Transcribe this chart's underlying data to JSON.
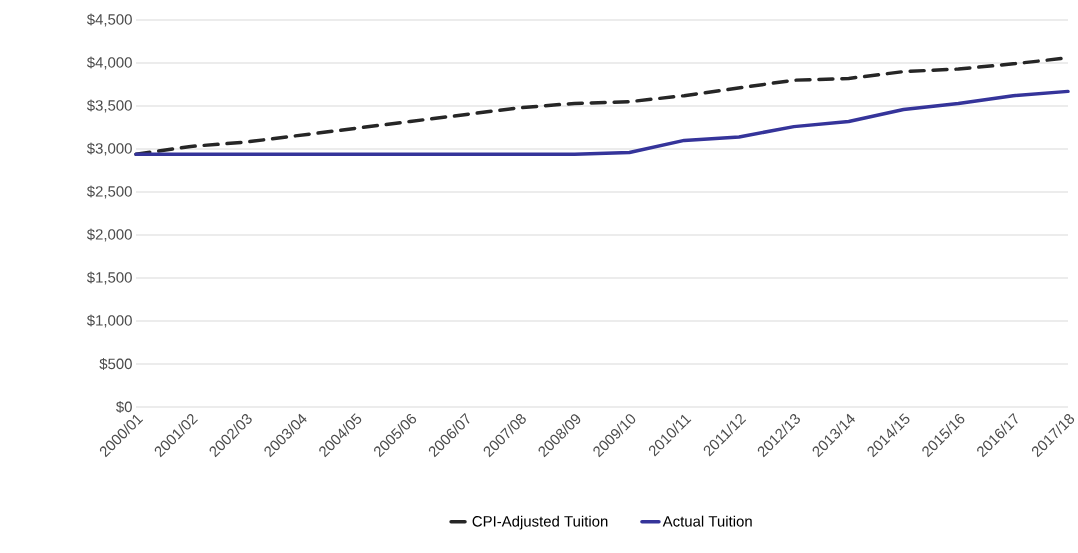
{
  "chart_data": {
    "type": "line",
    "categories": [
      "2000/01",
      "2001/02",
      "2002/03",
      "2003/04",
      "2004/05",
      "2005/06",
      "2006/07",
      "2007/08",
      "2008/09",
      "2009/10",
      "2010/11",
      "2011/12",
      "2012/13",
      "2013/14",
      "2014/15",
      "2015/16",
      "2016/17",
      "2017/18"
    ],
    "series": [
      {
        "name": "CPI-Adjusted Tuition",
        "color": "#262626",
        "line_style": "dashed",
        "values": [
          2940,
          3030,
          3080,
          3160,
          3240,
          3320,
          3400,
          3480,
          3530,
          3550,
          3620,
          3710,
          3800,
          3820,
          3900,
          3930,
          3990,
          4060
        ]
      },
      {
        "name": "Actual Tuition",
        "color": "#35349a",
        "line_style": "solid",
        "values": [
          2940,
          2940,
          2940,
          2940,
          2940,
          2940,
          2940,
          2940,
          2940,
          2960,
          3100,
          3140,
          3260,
          3320,
          3460,
          3530,
          3620,
          3670
        ]
      }
    ],
    "ylim": [
      0,
      4500
    ],
    "yticks": [
      {
        "value": 0,
        "label": "$0"
      },
      {
        "value": 500,
        "label": "$500"
      },
      {
        "value": 1000,
        "label": "$1,000"
      },
      {
        "value": 1500,
        "label": "$1,500"
      },
      {
        "value": 2000,
        "label": "$2,000"
      },
      {
        "value": 2500,
        "label": "$2,500"
      },
      {
        "value": 3000,
        "label": "$3,000"
      },
      {
        "value": 3500,
        "label": "$3,500"
      },
      {
        "value": 4000,
        "label": "$4,000"
      },
      {
        "value": 4500,
        "label": "$4,500"
      }
    ],
    "grid": "y",
    "legend": "bottom",
    "marker": "none"
  }
}
